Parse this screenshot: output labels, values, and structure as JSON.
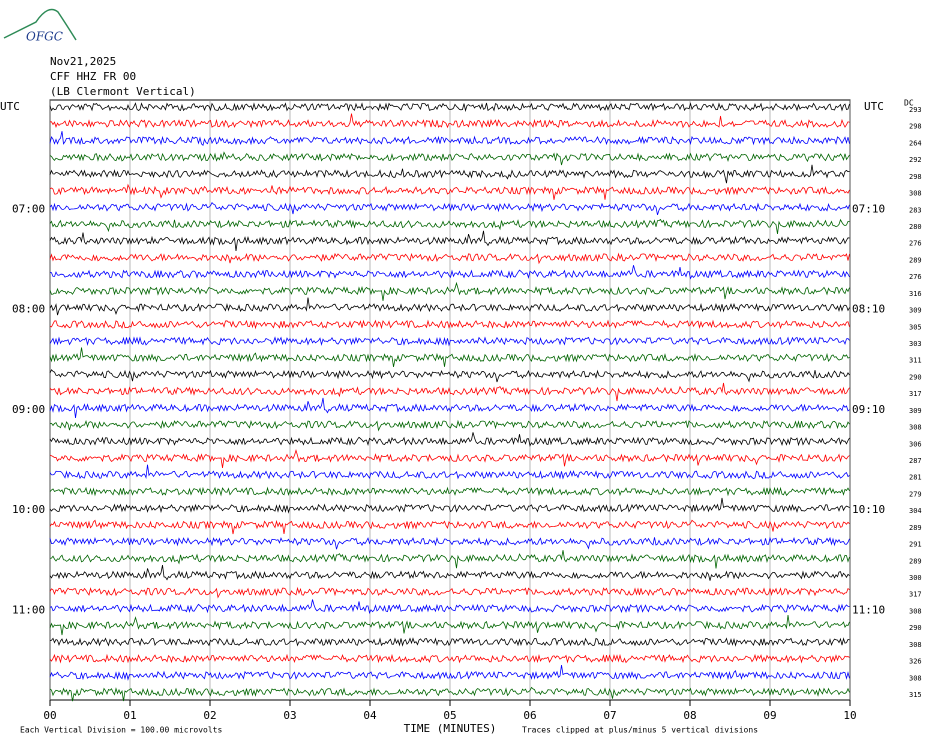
{
  "logo": "OFGC",
  "chart_data": {
    "type": "helicorder",
    "date": "Nov21,2025",
    "station": "CFF HHZ FR 00",
    "location": "(LB  Clermont Vertical)",
    "left_axis_label": "UTC",
    "right_axis_label": "UTC",
    "dc_label": "DC",
    "xlabel": "TIME (MINUTES)",
    "scale_note": "Each Vertical Division =  100.00 microvolts",
    "clip_note": "Traces clipped at plus/minus 5 vertical divisions",
    "xlim": [
      0,
      10
    ],
    "xticks": [
      {
        "value": 0,
        "label": "00"
      },
      {
        "value": 1,
        "label": "01"
      },
      {
        "value": 2,
        "label": "02"
      },
      {
        "value": 3,
        "label": "03"
      },
      {
        "value": 4,
        "label": "04"
      },
      {
        "value": 5,
        "label": "05"
      },
      {
        "value": 6,
        "label": "06"
      },
      {
        "value": 7,
        "label": "07"
      },
      {
        "value": 8,
        "label": "08"
      },
      {
        "value": 9,
        "label": "09"
      },
      {
        "value": 10,
        "label": "10"
      }
    ],
    "trace_colors": [
      "#000000",
      "#ff0000",
      "#0000ff",
      "#006400"
    ],
    "row_labels_left": [
      null,
      null,
      null,
      null,
      null,
      null,
      "07:00",
      null,
      null,
      null,
      null,
      null,
      "08:00",
      null,
      null,
      null,
      null,
      null,
      "09:00",
      null,
      null,
      null,
      null,
      null,
      "10:00",
      null,
      null,
      null,
      null,
      null,
      "11:00",
      null,
      null,
      null,
      null,
      null
    ],
    "row_labels_right": [
      null,
      null,
      null,
      null,
      null,
      null,
      "07:10",
      null,
      null,
      null,
      null,
      null,
      "08:10",
      null,
      null,
      null,
      null,
      null,
      "09:10",
      null,
      null,
      null,
      null,
      null,
      "10:10",
      null,
      null,
      null,
      null,
      null,
      "11:10",
      null,
      null,
      null,
      null,
      null
    ],
    "dc": [
      293,
      298,
      264,
      292,
      298,
      308,
      283,
      280,
      276,
      289,
      276,
      316,
      309,
      305,
      303,
      311,
      290,
      317,
      309,
      308,
      306,
      287,
      281,
      279,
      304,
      289,
      291,
      289,
      300,
      317,
      308,
      290,
      308,
      326,
      308,
      315
    ]
  }
}
